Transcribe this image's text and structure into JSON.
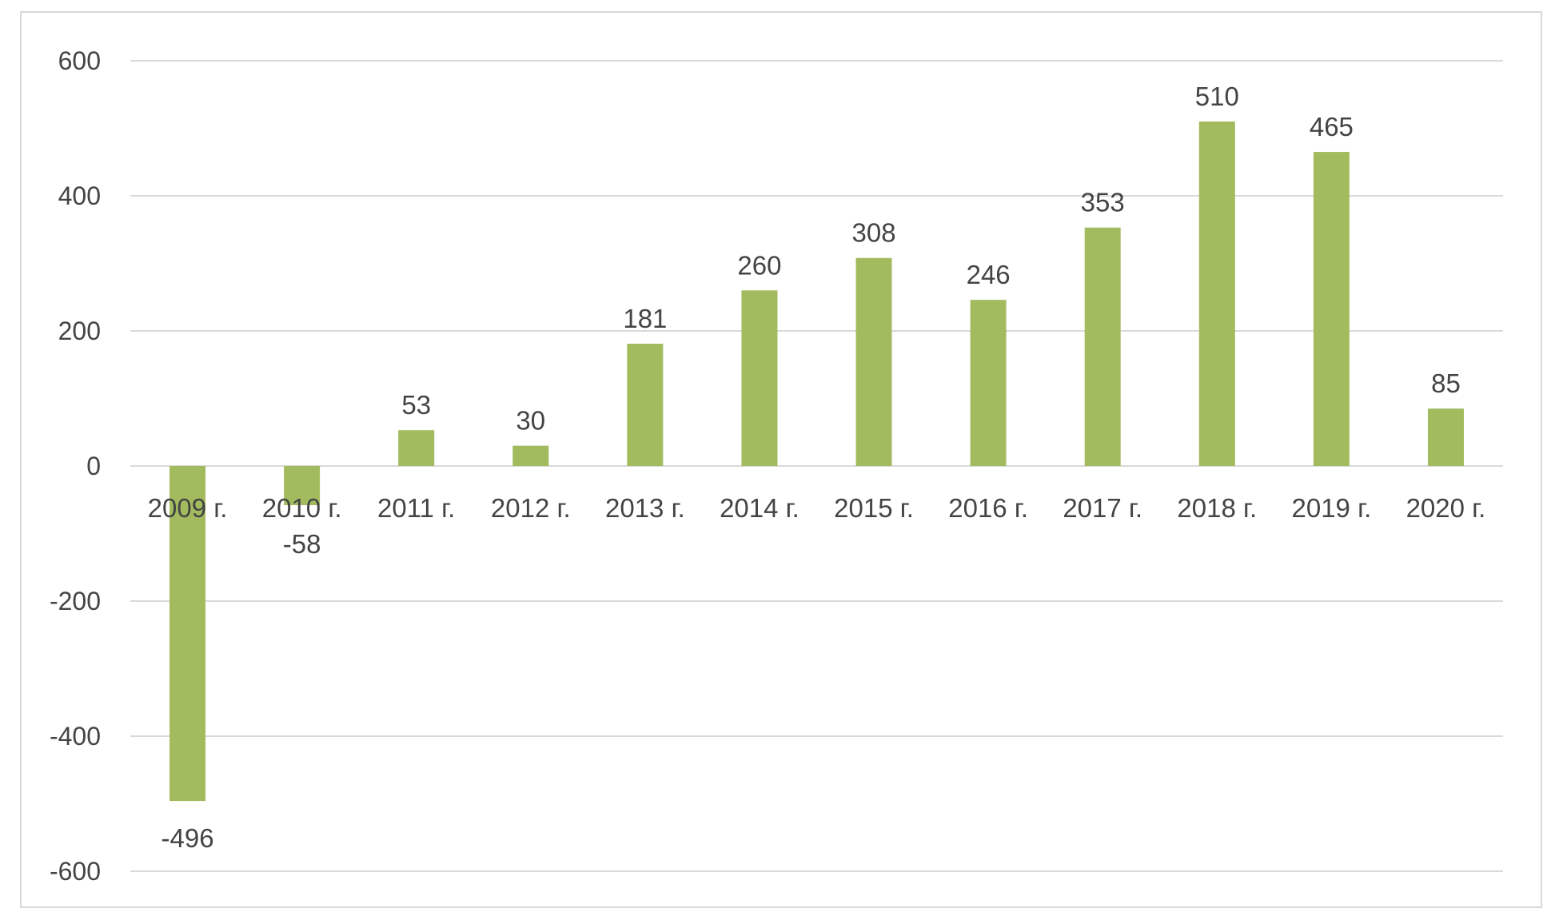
{
  "chart_data": {
    "type": "bar",
    "title": "",
    "xlabel": "",
    "ylabel": "",
    "categories": [
      "2009 г.",
      "2010 г.",
      "2011 г.",
      "2012 г.",
      "2013 г.",
      "2014 г.",
      "2015 г.",
      "2016 г.",
      "2017 г.",
      "2018 г.",
      "2019 г.",
      "2020 г."
    ],
    "values": [
      -496,
      -58,
      53,
      30,
      181,
      260,
      308,
      246,
      353,
      510,
      465,
      85
    ],
    "ylim": [
      -600,
      600
    ],
    "yticks": [
      600,
      400,
      200,
      0,
      -200,
      -400,
      -600
    ],
    "grid": true,
    "legend": "none",
    "bar_color": "#a2bb5e",
    "grid_color": "#d9d9d9"
  }
}
